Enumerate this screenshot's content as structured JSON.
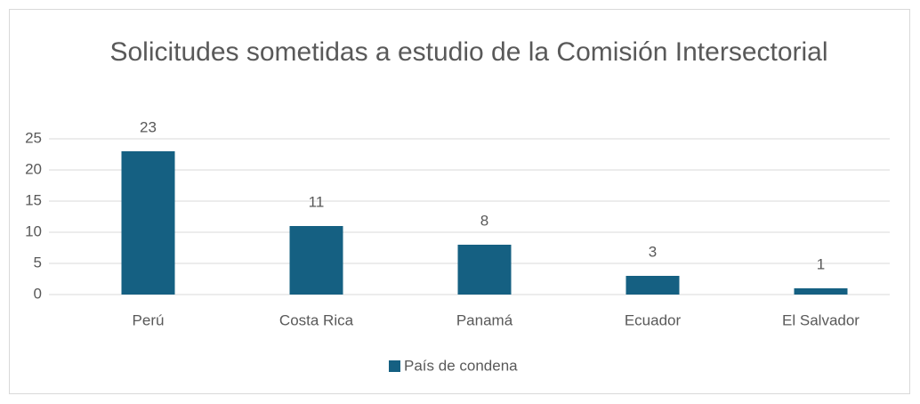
{
  "chart_data": {
    "type": "bar",
    "title": "Solicitudes sometidas a estudio de la Comisión Intersectorial",
    "categories": [
      "Perú",
      "Costa Rica",
      "Panamá",
      "Ecuador",
      "El Salvador"
    ],
    "series": [
      {
        "name": "País de condena",
        "color": "#156082",
        "values": [
          23,
          11,
          8,
          3,
          1
        ]
      }
    ],
    "ylim": [
      0,
      25
    ],
    "yticks": [
      0,
      5,
      10,
      15,
      20,
      25
    ],
    "grid": true,
    "legend": "bottom"
  }
}
